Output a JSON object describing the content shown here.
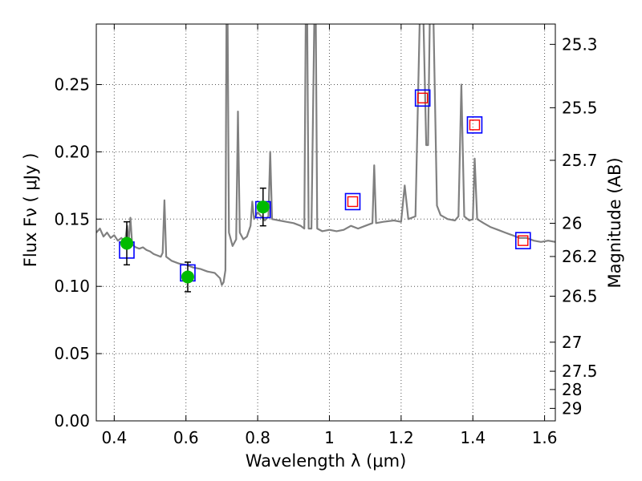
{
  "chart_data": {
    "type": "line",
    "title": "",
    "xlabel": "Wavelength  λ (μm)",
    "ylabel": "Flux  Fν  ( μJy )",
    "y2label": "Magnitude (AB)",
    "xlim": [
      0.35,
      1.63
    ],
    "ylim": [
      0.0,
      0.295
    ],
    "grid": true,
    "xticks": [
      0.4,
      0.6,
      0.8,
      1.0,
      1.2,
      1.4,
      1.6
    ],
    "xtick_labels": [
      "0.4",
      "0.6",
      "0.8",
      "1",
      "1.2",
      "1.4",
      "1.6"
    ],
    "yticks": [
      0.0,
      0.05,
      0.1,
      0.15,
      0.2,
      0.25
    ],
    "ytick_labels": [
      "0.00",
      "0.05",
      "0.10",
      "0.15",
      "0.20",
      "0.25"
    ],
    "y2ticks": [
      {
        "label": "25.3",
        "flux": 0.2799
      },
      {
        "label": "25.5",
        "flux": 0.2328
      },
      {
        "label": "25.7",
        "flux": 0.1937
      },
      {
        "label": "26",
        "flux": 0.1469
      },
      {
        "label": "26.2",
        "flux": 0.1222
      },
      {
        "label": "26.5",
        "flux": 0.0927
      },
      {
        "label": "27",
        "flux": 0.0585
      },
      {
        "label": "27.5",
        "flux": 0.0369
      },
      {
        "label": "28",
        "flux": 0.0233
      },
      {
        "label": "29",
        "flux": 0.0093
      }
    ],
    "colors": {
      "model": "#808080",
      "model_box": "#0000ff",
      "observed": "#00bb00",
      "upper_marker": "#ff0000",
      "grid": "#555555",
      "errorbar": "#000000"
    },
    "series": [
      {
        "name": "model spectrum",
        "kind": "line",
        "points": [
          [
            0.35,
            0.14
          ],
          [
            0.36,
            0.143
          ],
          [
            0.37,
            0.137
          ],
          [
            0.38,
            0.14
          ],
          [
            0.39,
            0.136
          ],
          [
            0.4,
            0.138
          ],
          [
            0.41,
            0.134
          ],
          [
            0.42,
            0.136
          ],
          [
            0.43,
            0.133
          ],
          [
            0.436,
            0.145
          ],
          [
            0.44,
            0.132
          ],
          [
            0.445,
            0.151
          ],
          [
            0.45,
            0.131
          ],
          [
            0.46,
            0.129
          ],
          [
            0.47,
            0.128
          ],
          [
            0.48,
            0.129
          ],
          [
            0.49,
            0.127
          ],
          [
            0.5,
            0.126
          ],
          [
            0.51,
            0.124
          ],
          [
            0.52,
            0.123
          ],
          [
            0.53,
            0.122
          ],
          [
            0.535,
            0.125
          ],
          [
            0.54,
            0.164
          ],
          [
            0.545,
            0.122
          ],
          [
            0.56,
            0.119
          ],
          [
            0.58,
            0.117
          ],
          [
            0.6,
            0.116
          ],
          [
            0.62,
            0.114
          ],
          [
            0.64,
            0.113
          ],
          [
            0.66,
            0.111
          ],
          [
            0.68,
            0.11
          ],
          [
            0.695,
            0.106
          ],
          [
            0.7,
            0.101
          ],
          [
            0.705,
            0.103
          ],
          [
            0.71,
            0.112
          ],
          [
            0.713,
            0.3
          ],
          [
            0.716,
            0.3
          ],
          [
            0.72,
            0.14
          ],
          [
            0.73,
            0.13
          ],
          [
            0.74,
            0.135
          ],
          [
            0.745,
            0.23
          ],
          [
            0.75,
            0.14
          ],
          [
            0.76,
            0.135
          ],
          [
            0.77,
            0.137
          ],
          [
            0.78,
            0.145
          ],
          [
            0.785,
            0.163
          ],
          [
            0.79,
            0.15
          ],
          [
            0.8,
            0.155
          ],
          [
            0.81,
            0.152
          ],
          [
            0.82,
            0.149
          ],
          [
            0.83,
            0.152
          ],
          [
            0.835,
            0.2
          ],
          [
            0.84,
            0.15
          ],
          [
            0.86,
            0.149
          ],
          [
            0.88,
            0.148
          ],
          [
            0.9,
            0.147
          ],
          [
            0.92,
            0.145
          ],
          [
            0.93,
            0.143
          ],
          [
            0.934,
            0.3
          ],
          [
            0.938,
            0.3
          ],
          [
            0.942,
            0.143
          ],
          [
            0.95,
            0.143
          ],
          [
            0.958,
            0.3
          ],
          [
            0.962,
            0.3
          ],
          [
            0.966,
            0.143
          ],
          [
            0.98,
            0.141
          ],
          [
            1.0,
            0.142
          ],
          [
            1.02,
            0.141
          ],
          [
            1.04,
            0.142
          ],
          [
            1.06,
            0.145
          ],
          [
            1.08,
            0.143
          ],
          [
            1.1,
            0.145
          ],
          [
            1.12,
            0.147
          ],
          [
            1.125,
            0.19
          ],
          [
            1.13,
            0.147
          ],
          [
            1.15,
            0.148
          ],
          [
            1.18,
            0.149
          ],
          [
            1.2,
            0.148
          ],
          [
            1.21,
            0.175
          ],
          [
            1.22,
            0.15
          ],
          [
            1.24,
            0.152
          ],
          [
            1.252,
            0.3
          ],
          [
            1.262,
            0.3
          ],
          [
            1.27,
            0.205
          ],
          [
            1.275,
            0.205
          ],
          [
            1.28,
            0.3
          ],
          [
            1.29,
            0.3
          ],
          [
            1.3,
            0.16
          ],
          [
            1.31,
            0.153
          ],
          [
            1.33,
            0.15
          ],
          [
            1.35,
            0.149
          ],
          [
            1.36,
            0.152
          ],
          [
            1.368,
            0.25
          ],
          [
            1.376,
            0.152
          ],
          [
            1.39,
            0.149
          ],
          [
            1.4,
            0.15
          ],
          [
            1.405,
            0.195
          ],
          [
            1.412,
            0.15
          ],
          [
            1.43,
            0.147
          ],
          [
            1.45,
            0.144
          ],
          [
            1.47,
            0.142
          ],
          [
            1.49,
            0.14
          ],
          [
            1.51,
            0.138
          ],
          [
            1.53,
            0.136
          ],
          [
            1.55,
            0.136
          ],
          [
            1.57,
            0.134
          ],
          [
            1.59,
            0.133
          ],
          [
            1.61,
            0.134
          ],
          [
            1.63,
            0.133
          ]
        ]
      },
      {
        "name": "model band flux",
        "kind": "open-square",
        "points": [
          [
            0.435,
            0.127
          ],
          [
            0.605,
            0.11
          ],
          [
            0.815,
            0.157
          ],
          [
            1.065,
            0.163
          ],
          [
            1.26,
            0.24
          ],
          [
            1.405,
            0.22
          ],
          [
            1.54,
            0.134
          ]
        ]
      },
      {
        "name": "observed flux",
        "kind": "filled-circle",
        "points": [
          {
            "x": 0.435,
            "y": 0.132,
            "yerr": 0.016
          },
          {
            "x": 0.605,
            "y": 0.107,
            "yerr": 0.011
          },
          {
            "x": 0.815,
            "y": 0.159,
            "yerr": 0.014
          }
        ]
      },
      {
        "name": "upper limits",
        "kind": "small-open-square",
        "points": [
          [
            1.065,
            0.163
          ],
          [
            1.26,
            0.24
          ],
          [
            1.405,
            0.22
          ],
          [
            1.54,
            0.134
          ]
        ]
      }
    ]
  }
}
